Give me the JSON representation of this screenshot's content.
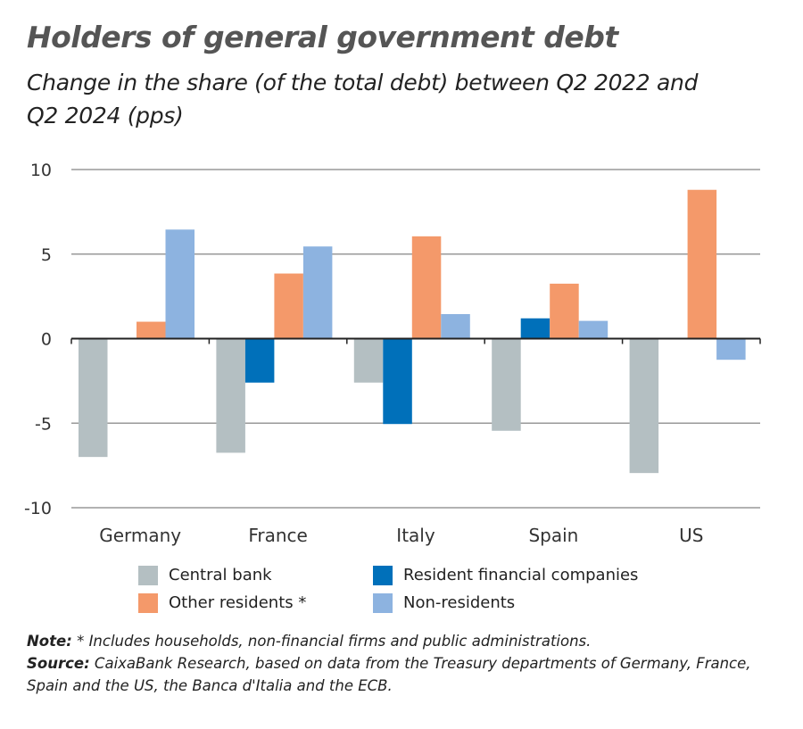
{
  "chart_data": {
    "type": "bar",
    "title": "Holders of general government debt",
    "subtitle": "Change in the share (of the total debt) between Q2 2022 and Q2 2024 (pps)",
    "categories": [
      "Germany",
      "France",
      "Italy",
      "Spain",
      "US"
    ],
    "ylim": [
      -10,
      10
    ],
    "yticks": [
      10,
      5,
      0,
      -5,
      -10
    ],
    "grid": true,
    "legend_placement": "bottom",
    "series": [
      {
        "name": "Central bank",
        "color": "#b4bfc2",
        "values": [
          -7.0,
          -6.75,
          -2.6,
          -5.45,
          -7.95
        ]
      },
      {
        "name": "Resident financial companies",
        "color": "#0070ba",
        "values": [
          0,
          -2.6,
          -5.05,
          1.2,
          0
        ]
      },
      {
        "name": "Other residents *",
        "color": "#f4996a",
        "values": [
          1.0,
          3.85,
          6.05,
          3.25,
          8.8
        ]
      },
      {
        "name": "Non-residents",
        "color": "#8db3e0",
        "values": [
          6.45,
          5.45,
          1.45,
          1.05,
          -1.25
        ]
      }
    ]
  },
  "note": {
    "label": "Note:",
    "text": " * Includes households, non-financial firms and public administrations."
  },
  "source": {
    "label": "Source:",
    "text": " CaixaBank Research, based on data from the Treasury departments of Germany, France, Spain and the US, the Banca d'Italia and the ECB."
  }
}
